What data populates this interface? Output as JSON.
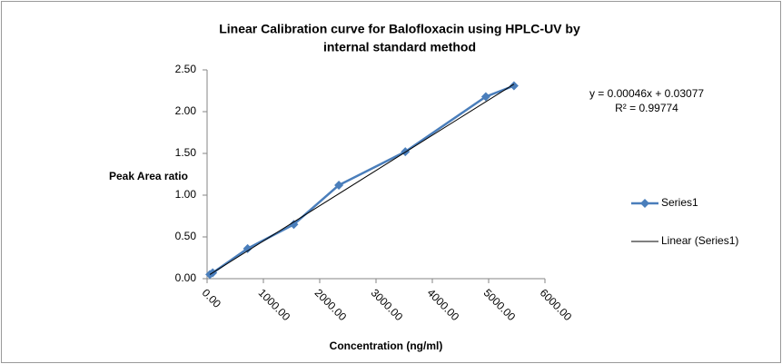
{
  "chart_data": {
    "type": "scatter",
    "title": [
      "Linear Calibration curve for Balofloxacin using HPLC-UV by",
      "internal standard method"
    ],
    "x_label": "Concentration (ng/ml)",
    "y_label": "Peak Area ratio",
    "annotations": [
      "y = 0.00046x + 0.03077",
      "R² = 0.99774"
    ],
    "series": [
      {
        "name": "Series1",
        "color": "#4a7ebb",
        "marker": "diamond",
        "x": [
          50,
          100,
          720,
          1540,
          2340,
          3520,
          4950,
          5450
        ],
        "values": [
          0.05,
          0.07,
          0.36,
          0.65,
          1.12,
          1.52,
          2.18,
          2.31
        ]
      },
      {
        "name": "Linear (Series1)",
        "color": "#000000",
        "marker": "none",
        "x": [
          50,
          5450
        ],
        "values": [
          0.05,
          2.33
        ]
      }
    ],
    "xlim": [
      0,
      6000
    ],
    "xticks": [
      {
        "value": 0,
        "label": "0.00"
      },
      {
        "value": 1000,
        "label": "1000.00"
      },
      {
        "value": 2000,
        "label": "2000.00"
      },
      {
        "value": 3000,
        "label": "3000.00"
      },
      {
        "value": 4000,
        "label": "4000.00"
      },
      {
        "value": 5000,
        "label": "5000.00"
      },
      {
        "value": 6000,
        "label": "6000.00"
      }
    ],
    "ylim": [
      0,
      2.5
    ],
    "yticks": [
      {
        "value": 0,
        "label": "0.00"
      },
      {
        "value": 0.5,
        "label": "0.50"
      },
      {
        "value": 1,
        "label": "1.00"
      },
      {
        "value": 1.5,
        "label": "1.50"
      },
      {
        "value": 2,
        "label": "2.00"
      },
      {
        "value": 2.5,
        "label": "2.50"
      }
    ],
    "grid": false,
    "legend": "right"
  }
}
